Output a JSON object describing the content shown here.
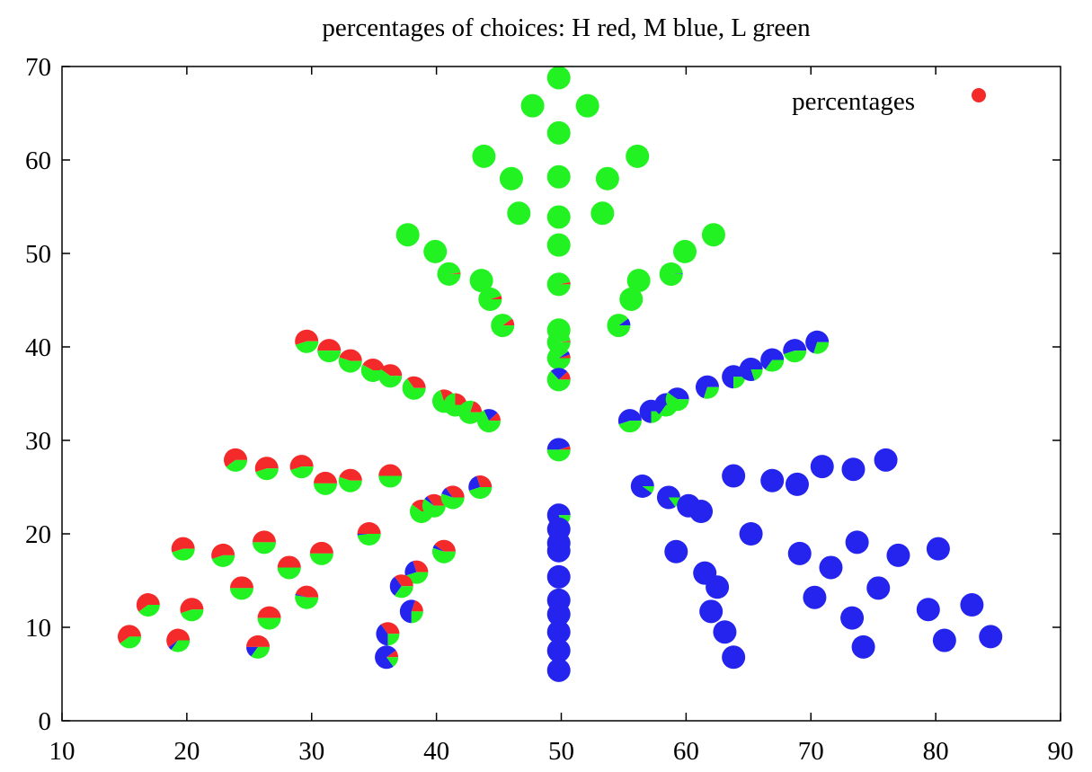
{
  "chart_data": {
    "type": "scatter",
    "title": "percentages of choices: H red, M blue, L green",
    "xlabel": "",
    "ylabel": "",
    "xlim": [
      10,
      90
    ],
    "ylim": [
      0,
      70
    ],
    "xticks": [
      "10",
      "20",
      "30",
      "40",
      "50",
      "60",
      "70",
      "80",
      "90"
    ],
    "yticks": [
      "0",
      "10",
      "20",
      "30",
      "40",
      "50",
      "60",
      "70"
    ],
    "grid": false,
    "legend": {
      "label": "percentages",
      "placement": "top-right"
    },
    "colors": {
      "H": "#f42a2a",
      "M": "#2424ee",
      "L": "#22f222"
    },
    "marker": "pie",
    "columns": [
      "x",
      "y",
      "H",
      "M",
      "L"
    ],
    "points": [
      [
        49.8,
        68.8,
        0,
        0,
        1
      ],
      [
        47.7,
        65.8,
        0,
        0,
        1
      ],
      [
        52.1,
        65.8,
        0,
        0,
        1
      ],
      [
        49.8,
        62.9,
        0,
        0,
        1
      ],
      [
        43.8,
        60.4,
        0,
        0,
        1
      ],
      [
        56.1,
        60.4,
        0,
        0,
        1
      ],
      [
        46.0,
        58.0,
        0,
        0,
        1
      ],
      [
        49.8,
        58.2,
        0,
        0,
        1
      ],
      [
        53.7,
        58.0,
        0,
        0,
        1
      ],
      [
        46.6,
        54.3,
        0,
        0,
        1
      ],
      [
        49.8,
        53.9,
        0,
        0,
        1
      ],
      [
        53.3,
        54.3,
        0,
        0,
        1
      ],
      [
        37.7,
        52.0,
        0,
        0,
        1
      ],
      [
        62.2,
        52.0,
        0,
        0,
        1
      ],
      [
        49.8,
        50.9,
        0,
        0,
        1
      ],
      [
        39.9,
        50.2,
        0,
        0,
        1
      ],
      [
        59.9,
        50.2,
        0,
        0,
        1
      ],
      [
        41.0,
        47.8,
        0.02,
        0,
        0.98
      ],
      [
        58.8,
        47.8,
        0,
        0.01,
        0.99
      ],
      [
        43.6,
        47.1,
        0,
        0,
        1
      ],
      [
        56.2,
        47.1,
        0,
        0,
        1
      ],
      [
        49.8,
        46.7,
        0.03,
        0,
        0.97
      ],
      [
        44.3,
        45.1,
        0.05,
        0,
        0.95
      ],
      [
        55.6,
        45.1,
        0,
        0,
        1
      ],
      [
        45.3,
        42.3,
        0.1,
        0,
        0.9
      ],
      [
        54.6,
        42.3,
        0,
        0.1,
        0.9
      ],
      [
        49.8,
        41.8,
        0,
        0,
        1
      ],
      [
        49.8,
        40.5,
        0.02,
        0,
        0.98
      ],
      [
        49.8,
        38.8,
        0.05,
        0.05,
        0.9
      ],
      [
        49.8,
        36.5,
        0.12,
        0.25,
        0.63
      ],
      [
        29.6,
        40.6,
        0.55,
        0,
        0.45
      ],
      [
        31.4,
        39.6,
        0.5,
        0,
        0.5
      ],
      [
        33.1,
        38.5,
        0.45,
        0,
        0.55
      ],
      [
        34.9,
        37.5,
        0.42,
        0,
        0.58
      ],
      [
        36.3,
        36.9,
        0.4,
        0,
        0.6
      ],
      [
        38.2,
        35.6,
        0.35,
        0,
        0.65
      ],
      [
        40.6,
        34.2,
        0.3,
        0,
        0.7
      ],
      [
        41.5,
        33.8,
        0.25,
        0,
        0.75
      ],
      [
        42.7,
        33.0,
        0.2,
        0,
        0.8
      ],
      [
        44.2,
        32.1,
        0.12,
        0.2,
        0.68
      ],
      [
        55.5,
        32.1,
        0,
        0.55,
        0.45
      ],
      [
        57.2,
        33.1,
        0,
        0.75,
        0.25
      ],
      [
        58.4,
        33.8,
        0,
        0.65,
        0.35
      ],
      [
        59.3,
        34.4,
        0,
        0.4,
        0.6
      ],
      [
        61.7,
        35.7,
        0,
        0.7,
        0.3
      ],
      [
        63.8,
        36.8,
        0,
        0.75,
        0.25
      ],
      [
        65.2,
        37.6,
        0,
        0.8,
        0.2
      ],
      [
        66.9,
        38.6,
        0,
        0.65,
        0.35
      ],
      [
        68.7,
        39.6,
        0,
        0.55,
        0.45
      ],
      [
        70.5,
        40.5,
        0,
        0.7,
        0.3
      ],
      [
        49.8,
        29.0,
        0.05,
        0.45,
        0.5
      ],
      [
        49.8,
        22.0,
        0,
        0.8,
        0.2
      ],
      [
        49.8,
        20.5,
        0,
        1,
        0
      ],
      [
        49.8,
        19.0,
        0,
        1,
        0
      ],
      [
        49.8,
        18.2,
        0,
        1,
        0
      ],
      [
        49.8,
        15.4,
        0,
        1,
        0
      ],
      [
        49.8,
        12.9,
        0,
        1,
        0
      ],
      [
        49.8,
        11.4,
        0,
        1,
        0
      ],
      [
        49.8,
        9.5,
        0,
        1,
        0
      ],
      [
        49.8,
        7.5,
        0,
        1,
        0
      ],
      [
        49.8,
        5.4,
        0,
        1,
        0
      ],
      [
        23.9,
        27.9,
        0.6,
        0,
        0.4
      ],
      [
        26.4,
        27.0,
        0.55,
        0,
        0.45
      ],
      [
        29.2,
        27.2,
        0.55,
        0,
        0.45
      ],
      [
        31.1,
        25.4,
        0.5,
        0,
        0.5
      ],
      [
        33.1,
        25.7,
        0.45,
        0,
        0.55
      ],
      [
        36.3,
        26.2,
        0.5,
        0,
        0.5
      ],
      [
        43.5,
        25.0,
        0.3,
        0.25,
        0.45
      ],
      [
        56.5,
        25.1,
        0,
        0.9,
        0.1
      ],
      [
        38.8,
        22.4,
        0.4,
        0,
        0.6
      ],
      [
        39.8,
        23.0,
        0.35,
        0.05,
        0.6
      ],
      [
        41.3,
        23.9,
        0.35,
        0.1,
        0.55
      ],
      [
        58.6,
        23.9,
        0,
        0.85,
        0.15
      ],
      [
        60.2,
        23.0,
        0,
        1,
        0
      ],
      [
        61.2,
        22.4,
        0,
        1,
        0
      ],
      [
        63.8,
        26.2,
        0,
        1,
        0
      ],
      [
        66.9,
        25.7,
        0,
        1,
        0
      ],
      [
        68.9,
        25.3,
        0,
        1,
        0
      ],
      [
        70.9,
        27.2,
        0,
        1,
        0
      ],
      [
        73.4,
        26.9,
        0,
        1,
        0
      ],
      [
        76.0,
        27.9,
        0,
        1,
        0
      ],
      [
        19.7,
        18.4,
        0.55,
        0,
        0.45
      ],
      [
        22.9,
        17.7,
        0.55,
        0,
        0.45
      ],
      [
        26.2,
        19.1,
        0.5,
        0,
        0.5
      ],
      [
        28.2,
        16.4,
        0.5,
        0,
        0.5
      ],
      [
        30.8,
        17.9,
        0.5,
        0,
        0.5
      ],
      [
        34.6,
        20.0,
        0.5,
        0.02,
        0.48
      ],
      [
        40.6,
        18.1,
        0.4,
        0.05,
        0.55
      ],
      [
        65.2,
        20.0,
        0,
        1,
        0
      ],
      [
        59.2,
        18.1,
        0,
        1,
        0
      ],
      [
        61.5,
        15.8,
        0,
        1,
        0
      ],
      [
        69.1,
        17.9,
        0,
        1,
        0
      ],
      [
        71.6,
        16.4,
        0,
        1,
        0
      ],
      [
        73.7,
        19.1,
        0,
        1,
        0
      ],
      [
        77.0,
        17.7,
        0,
        1,
        0
      ],
      [
        80.2,
        18.4,
        0,
        1,
        0
      ],
      [
        38.4,
        15.9,
        0.3,
        0.25,
        0.45
      ],
      [
        37.2,
        14.4,
        0.35,
        0.3,
        0.35
      ],
      [
        24.4,
        14.2,
        0.5,
        0,
        0.5
      ],
      [
        29.6,
        13.2,
        0.45,
        0.02,
        0.53
      ],
      [
        62.5,
        14.3,
        0,
        1,
        0
      ],
      [
        70.3,
        13.2,
        0,
        1,
        0
      ],
      [
        75.4,
        14.2,
        0,
        1,
        0
      ],
      [
        16.9,
        12.4,
        0.6,
        0,
        0.4
      ],
      [
        20.4,
        11.9,
        0.55,
        0,
        0.45
      ],
      [
        26.6,
        11.0,
        0.5,
        0,
        0.5
      ],
      [
        38.0,
        11.7,
        0.2,
        0.55,
        0.25
      ],
      [
        62.0,
        11.7,
        0,
        1,
        0
      ],
      [
        73.3,
        11.0,
        0,
        1,
        0
      ],
      [
        79.4,
        11.9,
        0,
        1,
        0
      ],
      [
        82.9,
        12.4,
        0,
        1,
        0
      ],
      [
        15.4,
        9.0,
        0.6,
        0,
        0.4
      ],
      [
        19.3,
        8.6,
        0.6,
        0.05,
        0.35
      ],
      [
        25.7,
        7.9,
        0.5,
        0.15,
        0.35
      ],
      [
        36.1,
        9.3,
        0.35,
        0.4,
        0.25
      ],
      [
        36.0,
        6.8,
        0.1,
        0.75,
        0.15
      ],
      [
        63.1,
        9.5,
        0,
        1,
        0
      ],
      [
        63.8,
        6.8,
        0,
        1,
        0
      ],
      [
        74.2,
        7.9,
        0,
        1,
        0
      ],
      [
        80.7,
        8.6,
        0,
        1,
        0
      ],
      [
        84.4,
        9.0,
        0,
        1,
        0
      ]
    ]
  }
}
